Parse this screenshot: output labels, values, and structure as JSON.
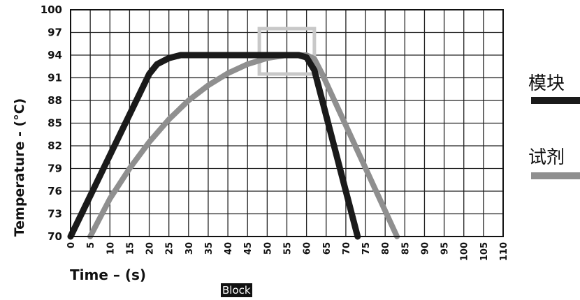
{
  "chart_data": {
    "type": "line",
    "title": "",
    "xlabel": "Time – (s)",
    "ylabel": "Temperature - (°C)",
    "xlim": [
      0,
      110
    ],
    "ylim": [
      70,
      100
    ],
    "x_ticks": [
      0,
      5,
      10,
      15,
      20,
      25,
      30,
      35,
      40,
      45,
      50,
      55,
      60,
      65,
      70,
      75,
      80,
      85,
      90,
      95,
      100,
      105,
      110
    ],
    "y_ticks": [
      70,
      73,
      76,
      79,
      82,
      85,
      88,
      91,
      94,
      97,
      100
    ],
    "grid": true,
    "legend_position": "right",
    "series": [
      {
        "name": "模块",
        "color": "#1a1a1a",
        "points": [
          [
            0,
            70
          ],
          [
            20,
            91.5
          ],
          [
            22,
            92.8
          ],
          [
            25,
            93.6
          ],
          [
            28,
            94
          ],
          [
            58,
            94
          ],
          [
            60,
            93.7
          ],
          [
            62,
            92
          ],
          [
            73,
            70
          ]
        ]
      },
      {
        "name": "试剂",
        "color": "#8f8f8f",
        "points": [
          [
            5,
            70
          ],
          [
            10,
            75
          ],
          [
            15,
            79
          ],
          [
            20,
            82.5
          ],
          [
            25,
            85.5
          ],
          [
            30,
            88
          ],
          [
            35,
            90
          ],
          [
            40,
            91.6
          ],
          [
            45,
            92.8
          ],
          [
            50,
            93.6
          ],
          [
            55,
            94
          ],
          [
            60,
            94
          ],
          [
            62,
            93.5
          ],
          [
            64,
            91.5
          ],
          [
            83,
            70
          ]
        ]
      }
    ],
    "annotations": [
      {
        "type": "highlight-box",
        "x": [
          48,
          62
        ],
        "y": [
          91.5,
          97.5
        ],
        "color": "#c8c8c8"
      }
    ]
  },
  "caption": "Block"
}
